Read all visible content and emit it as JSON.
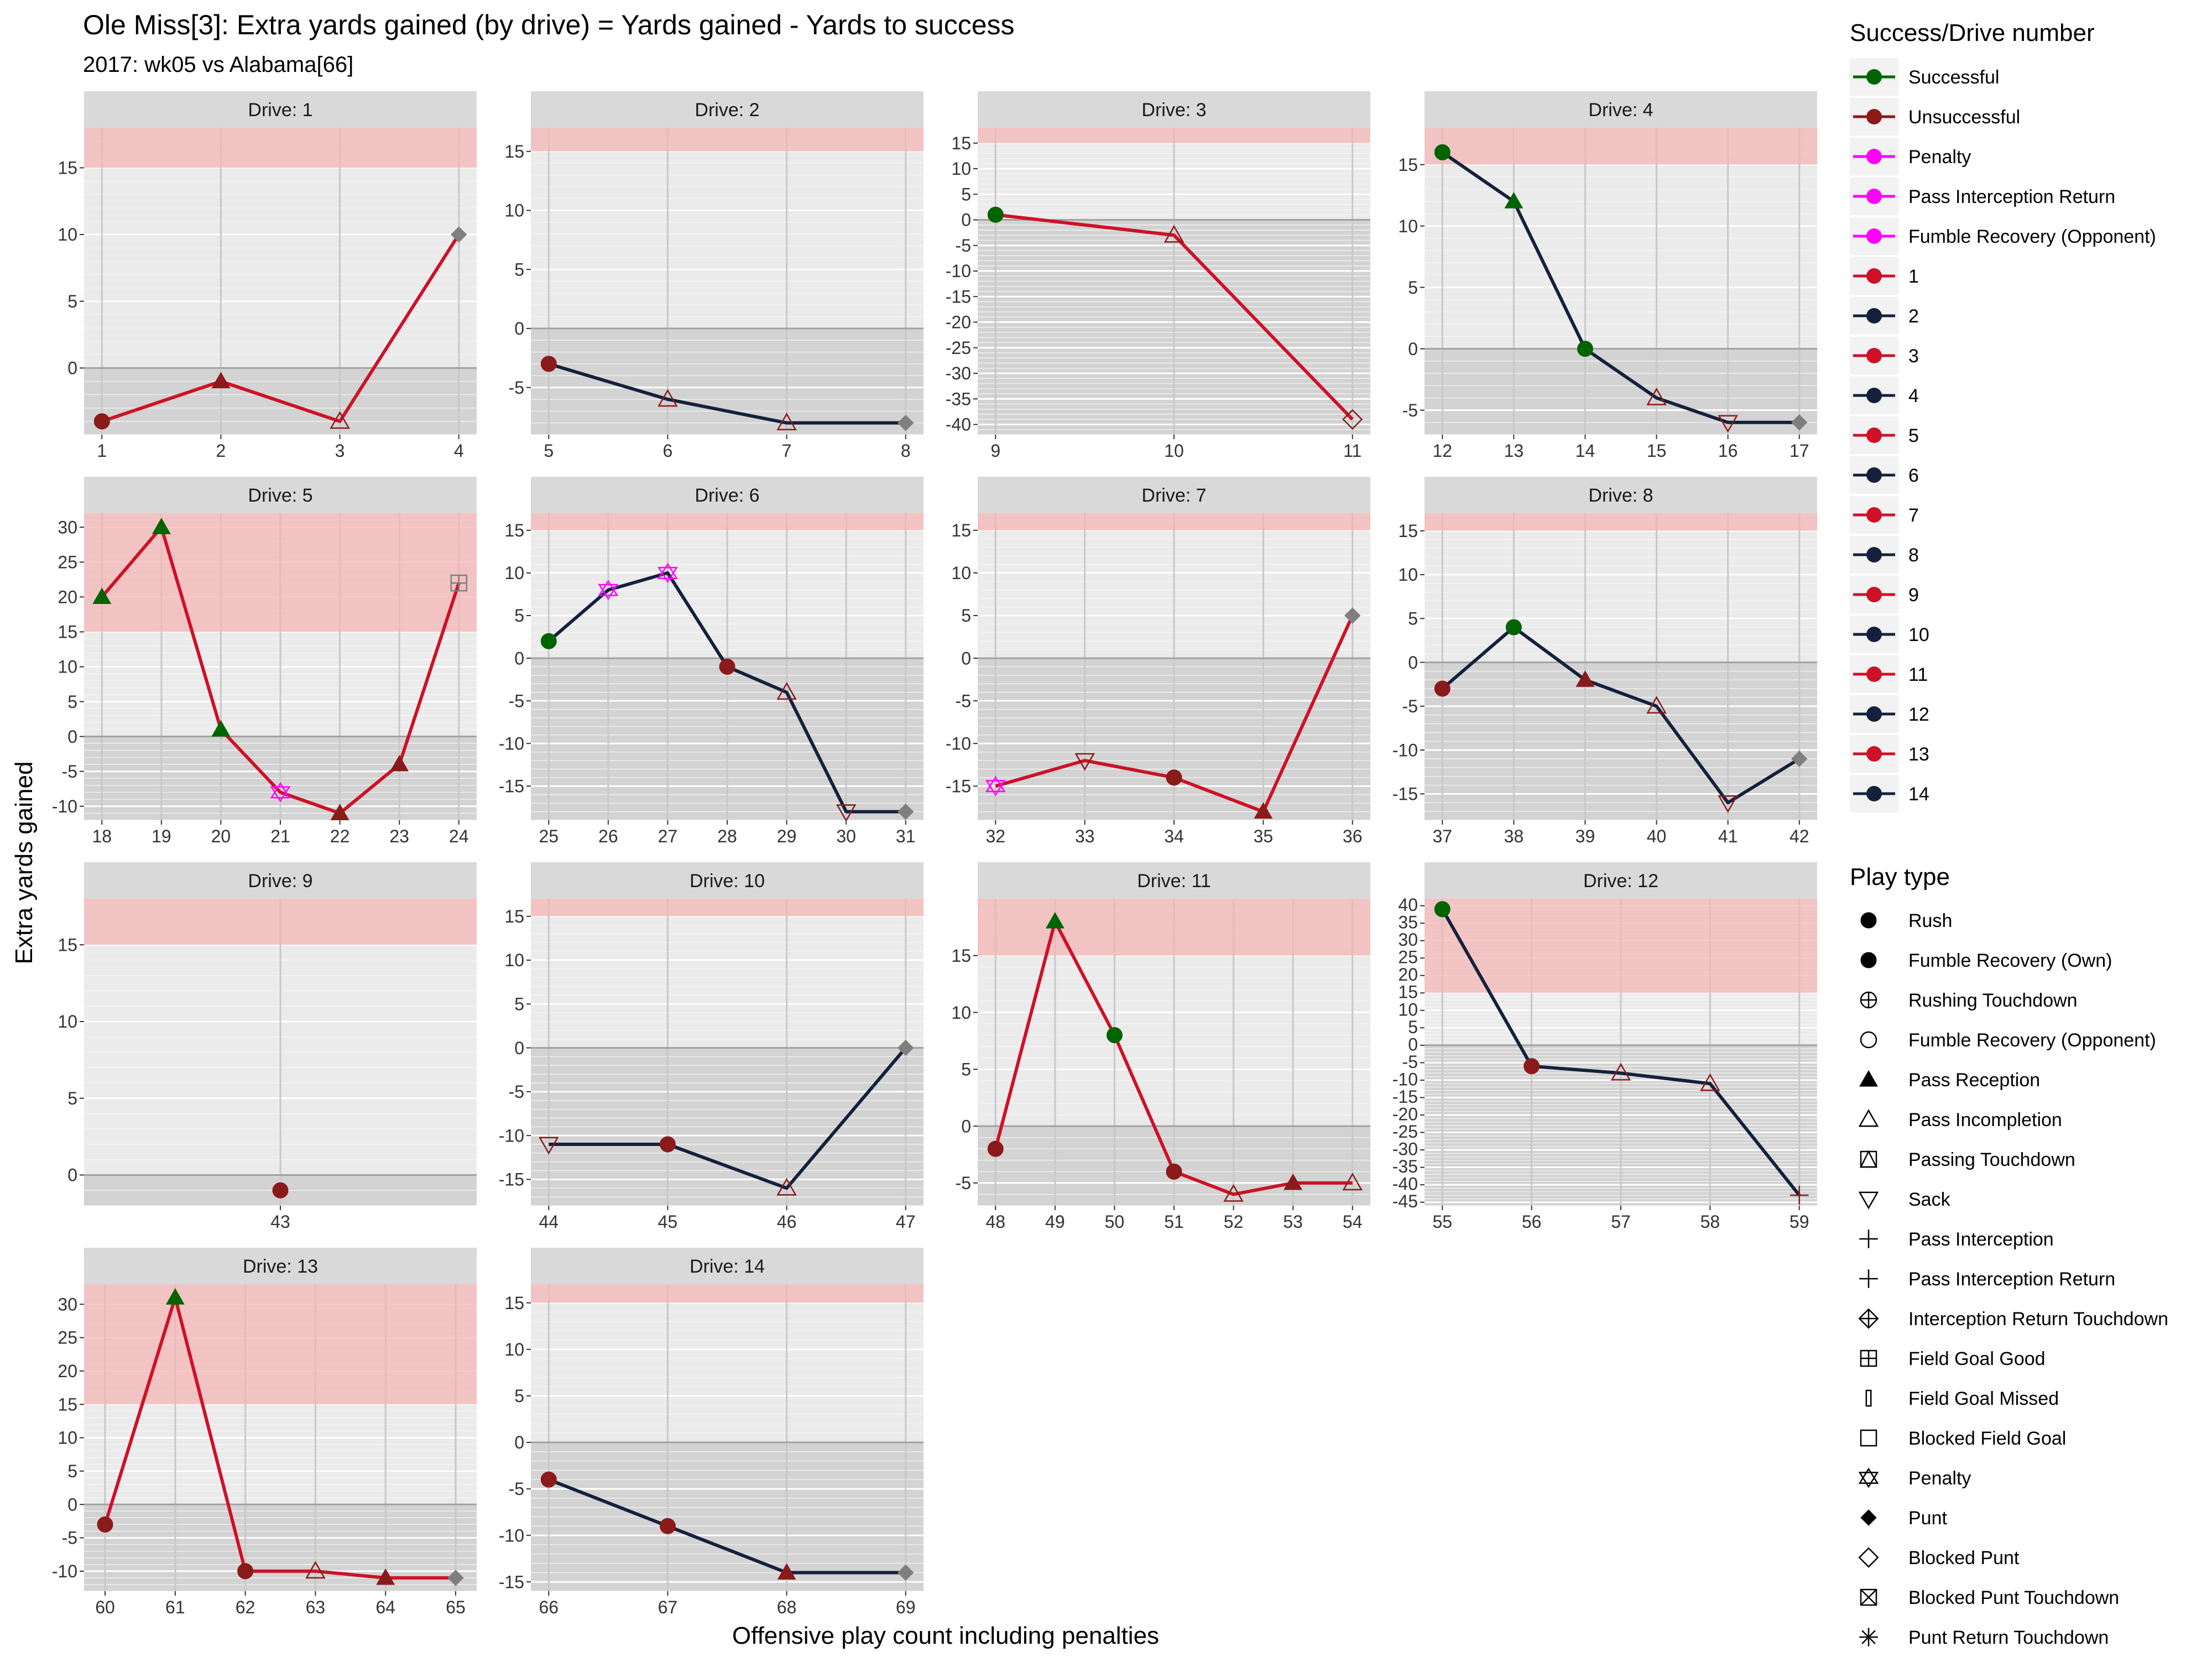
{
  "page": {
    "title": "Ole Miss[3]: Extra yards gained (by drive) = Yards gained - Yards to success",
    "subtitle": "2017: wk05 vs Alabama[66]"
  },
  "legend": {
    "success_title": "Success/Drive number",
    "success_items": [
      {
        "label": "Successful",
        "color": "#006400"
      },
      {
        "label": "Unsuccessful",
        "color": "#8B1A1A"
      },
      {
        "label": "Penalty",
        "color": "#FF00FF"
      },
      {
        "label": "Pass Interception Return",
        "color": "#FF00FF"
      },
      {
        "label": "Fumble Recovery (Opponent)",
        "color": "#FF00FF"
      },
      {
        "label": "1",
        "color": "#CE1126"
      },
      {
        "label": "2",
        "color": "#14213D"
      },
      {
        "label": "3",
        "color": "#CE1126"
      },
      {
        "label": "4",
        "color": "#14213D"
      },
      {
        "label": "5",
        "color": "#CE1126"
      },
      {
        "label": "6",
        "color": "#14213D"
      },
      {
        "label": "7",
        "color": "#CE1126"
      },
      {
        "label": "8",
        "color": "#14213D"
      },
      {
        "label": "9",
        "color": "#CE1126"
      },
      {
        "label": "10",
        "color": "#14213D"
      },
      {
        "label": "11",
        "color": "#CE1126"
      },
      {
        "label": "12",
        "color": "#14213D"
      },
      {
        "label": "13",
        "color": "#CE1126"
      },
      {
        "label": "14",
        "color": "#14213D"
      }
    ],
    "play_title": "Play type",
    "play_items": [
      {
        "label": "Rush",
        "shape": "circle"
      },
      {
        "label": "Fumble Recovery (Own)",
        "shape": "circle"
      },
      {
        "label": "Rushing Touchdown",
        "shape": "circleplus"
      },
      {
        "label": "Fumble Recovery (Opponent)",
        "shape": "circleopen"
      },
      {
        "label": "Pass Reception",
        "shape": "triangle"
      },
      {
        "label": "Pass Incompletion",
        "shape": "triangleopen"
      },
      {
        "label": "Passing Touchdown",
        "shape": "trianglesquare"
      },
      {
        "label": "Sack",
        "shape": "triangledown"
      },
      {
        "label": "Pass Interception",
        "shape": "plus"
      },
      {
        "label": "Pass Interception Return",
        "shape": "plus"
      },
      {
        "label": "Interception Return Touchdown",
        "shape": "diamondplus"
      },
      {
        "label": "Field Goal Good",
        "shape": "squareplus"
      },
      {
        "label": "Field Goal Missed",
        "shape": "bar"
      },
      {
        "label": "Blocked Field Goal",
        "shape": "squareopen"
      },
      {
        "label": "Penalty",
        "shape": "star"
      },
      {
        "label": "Punt",
        "shape": "diamond"
      },
      {
        "label": "Blocked Punt",
        "shape": "diamondopen"
      },
      {
        "label": "Blocked Punt Touchdown",
        "shape": "squarecross"
      },
      {
        "label": "Punt Return Touchdown",
        "shape": "asterisk"
      }
    ]
  },
  "chart_data": {
    "type": "line",
    "title": "Ole Miss[3]: Extra yards gained (by drive) = Yards gained - Yards to success",
    "subtitle": "2017: wk05 vs Alabama[66]",
    "xlabel": "Offensive play count including penalties",
    "ylabel": "Extra yards gained",
    "success_band_min": 15,
    "colors": {
      "Successful": "#006400",
      "Unsuccessful": "#8B1A1A",
      "Penalty": "#FF00FF",
      "Kick": "#7f7f7f",
      "Odd": "#CE1126",
      "Even": "#14213D"
    },
    "panels": [
      {
        "drive": 1,
        "strip": "Drive: 1",
        "xlim": [
          0.85,
          4.15
        ],
        "ylim": [
          -5,
          18
        ],
        "xticks": [
          1,
          2,
          3,
          4
        ],
        "yticks": [
          0,
          5,
          10,
          15
        ],
        "points": [
          {
            "x": 1,
            "y": -4,
            "shape": "circle",
            "status": "Unsuccessful"
          },
          {
            "x": 2,
            "y": -1,
            "shape": "triangle",
            "status": "Unsuccessful"
          },
          {
            "x": 3,
            "y": -4,
            "shape": "triangleopen",
            "status": "Unsuccessful"
          },
          {
            "x": 4,
            "y": 10,
            "shape": "diamond",
            "status": "Kick"
          }
        ]
      },
      {
        "drive": 2,
        "strip": "Drive: 2",
        "xlim": [
          4.85,
          8.15
        ],
        "ylim": [
          -9,
          17
        ],
        "xticks": [
          5,
          6,
          7,
          8
        ],
        "yticks": [
          -5,
          0,
          5,
          10,
          15
        ],
        "points": [
          {
            "x": 5,
            "y": -3,
            "shape": "circle",
            "status": "Unsuccessful"
          },
          {
            "x": 6,
            "y": -6,
            "shape": "triangleopen",
            "status": "Unsuccessful"
          },
          {
            "x": 7,
            "y": -8,
            "shape": "triangleopen",
            "status": "Unsuccessful"
          },
          {
            "x": 8,
            "y": -8,
            "shape": "diamond",
            "status": "Kick"
          }
        ]
      },
      {
        "drive": 3,
        "strip": "Drive: 3",
        "xlim": [
          8.9,
          11.1
        ],
        "ylim": [
          -42,
          18
        ],
        "xticks": [
          9,
          10,
          11
        ],
        "yticks": [
          -40,
          -35,
          -30,
          -25,
          -20,
          -15,
          -10,
          -5,
          0,
          5,
          10,
          15
        ],
        "points": [
          {
            "x": 9,
            "y": 1,
            "shape": "circle",
            "status": "Successful"
          },
          {
            "x": 10,
            "y": -3,
            "shape": "triangleopen",
            "status": "Unsuccessful"
          },
          {
            "x": 11,
            "y": -39,
            "shape": "diamondopen",
            "status": "Unsuccessful"
          }
        ]
      },
      {
        "drive": 4,
        "strip": "Drive: 4",
        "xlim": [
          11.75,
          17.25
        ],
        "ylim": [
          -7,
          18
        ],
        "xticks": [
          12,
          13,
          14,
          15,
          16,
          17
        ],
        "yticks": [
          -5,
          0,
          5,
          10,
          15
        ],
        "points": [
          {
            "x": 12,
            "y": 16,
            "shape": "circle",
            "status": "Successful"
          },
          {
            "x": 13,
            "y": 12,
            "shape": "triangle",
            "status": "Successful"
          },
          {
            "x": 14,
            "y": 0,
            "shape": "circle",
            "status": "Successful"
          },
          {
            "x": 15,
            "y": -4,
            "shape": "triangleopen",
            "status": "Unsuccessful"
          },
          {
            "x": 16,
            "y": -6,
            "shape": "triangledown",
            "status": "Unsuccessful"
          },
          {
            "x": 17,
            "y": -6,
            "shape": "diamond",
            "status": "Kick"
          }
        ]
      },
      {
        "drive": 5,
        "strip": "Drive: 5",
        "xlim": [
          17.7,
          24.3
        ],
        "ylim": [
          -12,
          32
        ],
        "xticks": [
          18,
          19,
          20,
          21,
          22,
          23,
          24
        ],
        "yticks": [
          -10,
          -5,
          0,
          5,
          10,
          15,
          20,
          25,
          30
        ],
        "points": [
          {
            "x": 18,
            "y": 20,
            "shape": "triangle",
            "status": "Successful"
          },
          {
            "x": 19,
            "y": 30,
            "shape": "triangle",
            "status": "Successful"
          },
          {
            "x": 20,
            "y": 1,
            "shape": "triangle",
            "status": "Successful"
          },
          {
            "x": 21,
            "y": -8,
            "shape": "star",
            "status": "Penalty"
          },
          {
            "x": 22,
            "y": -11,
            "shape": "triangle",
            "status": "Unsuccessful"
          },
          {
            "x": 23,
            "y": -4,
            "shape": "triangle",
            "status": "Unsuccessful"
          },
          {
            "x": 24,
            "y": 22,
            "shape": "squareplus",
            "status": "Kick"
          }
        ]
      },
      {
        "drive": 6,
        "strip": "Drive: 6",
        "xlim": [
          24.7,
          31.3
        ],
        "ylim": [
          -19,
          17
        ],
        "xticks": [
          25,
          26,
          27,
          28,
          29,
          30,
          31
        ],
        "yticks": [
          -15,
          -10,
          -5,
          0,
          5,
          10,
          15
        ],
        "points": [
          {
            "x": 25,
            "y": 2,
            "shape": "circle",
            "status": "Successful"
          },
          {
            "x": 26,
            "y": 8,
            "shape": "star",
            "status": "Penalty"
          },
          {
            "x": 27,
            "y": 10,
            "shape": "star",
            "status": "Penalty"
          },
          {
            "x": 28,
            "y": -1,
            "shape": "circle",
            "status": "Unsuccessful"
          },
          {
            "x": 29,
            "y": -4,
            "shape": "triangleopen",
            "status": "Unsuccessful"
          },
          {
            "x": 30,
            "y": -18,
            "shape": "triangledown",
            "status": "Unsuccessful"
          },
          {
            "x": 31,
            "y": -18,
            "shape": "diamond",
            "status": "Kick"
          }
        ]
      },
      {
        "drive": 7,
        "strip": "Drive: 7",
        "xlim": [
          31.8,
          36.2
        ],
        "ylim": [
          -19,
          17
        ],
        "xticks": [
          32,
          33,
          34,
          35,
          36
        ],
        "yticks": [
          -15,
          -10,
          -5,
          0,
          5,
          10,
          15
        ],
        "points": [
          {
            "x": 32,
            "y": -15,
            "shape": "star",
            "status": "Penalty"
          },
          {
            "x": 33,
            "y": -12,
            "shape": "triangledown",
            "status": "Unsuccessful"
          },
          {
            "x": 34,
            "y": -14,
            "shape": "circle",
            "status": "Unsuccessful"
          },
          {
            "x": 35,
            "y": -18,
            "shape": "triangle",
            "status": "Unsuccessful"
          },
          {
            "x": 36,
            "y": 5,
            "shape": "diamond",
            "status": "Kick"
          }
        ]
      },
      {
        "drive": 8,
        "strip": "Drive: 8",
        "xlim": [
          36.75,
          42.25
        ],
        "ylim": [
          -18,
          17
        ],
        "xticks": [
          37,
          38,
          39,
          40,
          41,
          42
        ],
        "yticks": [
          -15,
          -10,
          -5,
          0,
          5,
          10,
          15
        ],
        "points": [
          {
            "x": 37,
            "y": -3,
            "shape": "circle",
            "status": "Unsuccessful"
          },
          {
            "x": 38,
            "y": 4,
            "shape": "circle",
            "status": "Successful"
          },
          {
            "x": 39,
            "y": -2,
            "shape": "triangle",
            "status": "Unsuccessful"
          },
          {
            "x": 40,
            "y": -5,
            "shape": "triangleopen",
            "status": "Unsuccessful"
          },
          {
            "x": 41,
            "y": -16,
            "shape": "triangledown",
            "status": "Unsuccessful"
          },
          {
            "x": 42,
            "y": -11,
            "shape": "diamond",
            "status": "Kick"
          }
        ]
      },
      {
        "drive": 9,
        "strip": "Drive: 9",
        "xlim": [
          42.4,
          43.6
        ],
        "ylim": [
          -2,
          18
        ],
        "xticks": [
          43
        ],
        "yticks": [
          0,
          5,
          10,
          15
        ],
        "points": [
          {
            "x": 43,
            "y": -1,
            "shape": "circle",
            "status": "Unsuccessful"
          }
        ]
      },
      {
        "drive": 10,
        "strip": "Drive: 10",
        "xlim": [
          43.85,
          47.15
        ],
        "ylim": [
          -18,
          17
        ],
        "xticks": [
          44,
          45,
          46,
          47
        ],
        "yticks": [
          -15,
          -10,
          -5,
          0,
          5,
          10,
          15
        ],
        "points": [
          {
            "x": 44,
            "y": -11,
            "shape": "triangledown",
            "status": "Unsuccessful"
          },
          {
            "x": 45,
            "y": -11,
            "shape": "circle",
            "status": "Unsuccessful"
          },
          {
            "x": 46,
            "y": -16,
            "shape": "triangleopen",
            "status": "Unsuccessful"
          },
          {
            "x": 47,
            "y": 0,
            "shape": "diamond",
            "status": "Kick"
          }
        ]
      },
      {
        "drive": 11,
        "strip": "Drive: 11",
        "xlim": [
          47.7,
          54.3
        ],
        "ylim": [
          -7,
          20
        ],
        "xticks": [
          48,
          49,
          50,
          51,
          52,
          53,
          54
        ],
        "yticks": [
          -5,
          0,
          5,
          10,
          15
        ],
        "points": [
          {
            "x": 48,
            "y": -2,
            "shape": "circle",
            "status": "Unsuccessful"
          },
          {
            "x": 49,
            "y": 18,
            "shape": "triangle",
            "status": "Successful"
          },
          {
            "x": 50,
            "y": 8,
            "shape": "circle",
            "status": "Successful"
          },
          {
            "x": 51,
            "y": -4,
            "shape": "circle",
            "status": "Unsuccessful"
          },
          {
            "x": 52,
            "y": -6,
            "shape": "triangleopen",
            "status": "Unsuccessful"
          },
          {
            "x": 53,
            "y": -5,
            "shape": "triangle",
            "status": "Unsuccessful"
          },
          {
            "x": 54,
            "y": -5,
            "shape": "triangleopen",
            "status": "Unsuccessful"
          }
        ]
      },
      {
        "drive": 12,
        "strip": "Drive: 12",
        "xlim": [
          54.8,
          59.2
        ],
        "ylim": [
          -46,
          42
        ],
        "xticks": [
          55,
          56,
          57,
          58,
          59
        ],
        "yticks": [
          -45,
          -40,
          -35,
          -30,
          -25,
          -20,
          -15,
          -10,
          -5,
          0,
          5,
          10,
          15,
          20,
          25,
          30,
          35,
          40
        ],
        "points": [
          {
            "x": 55,
            "y": 39,
            "shape": "circle",
            "status": "Successful"
          },
          {
            "x": 56,
            "y": -6,
            "shape": "circle",
            "status": "Unsuccessful"
          },
          {
            "x": 57,
            "y": -8,
            "shape": "triangleopen",
            "status": "Unsuccessful"
          },
          {
            "x": 58,
            "y": -11,
            "shape": "triangleopen",
            "status": "Unsuccessful"
          },
          {
            "x": 59,
            "y": -43,
            "shape": "plus",
            "status": "Unsuccessful"
          }
        ]
      },
      {
        "drive": 13,
        "strip": "Drive: 13",
        "xlim": [
          59.7,
          65.3
        ],
        "ylim": [
          -13,
          33
        ],
        "xticks": [
          60,
          61,
          62,
          63,
          64,
          65
        ],
        "yticks": [
          -10,
          -5,
          0,
          5,
          10,
          15,
          20,
          25,
          30
        ],
        "points": [
          {
            "x": 60,
            "y": -3,
            "shape": "circle",
            "status": "Unsuccessful"
          },
          {
            "x": 61,
            "y": 31,
            "shape": "triangle",
            "status": "Successful"
          },
          {
            "x": 62,
            "y": -10,
            "shape": "circle",
            "status": "Unsuccessful"
          },
          {
            "x": 63,
            "y": -10,
            "shape": "triangleopen",
            "status": "Unsuccessful"
          },
          {
            "x": 64,
            "y": -11,
            "shape": "triangle",
            "status": "Unsuccessful"
          },
          {
            "x": 65,
            "y": -11,
            "shape": "diamond",
            "status": "Kick"
          }
        ]
      },
      {
        "drive": 14,
        "strip": "Drive: 14",
        "xlim": [
          65.85,
          69.15
        ],
        "ylim": [
          -16,
          17
        ],
        "xticks": [
          66,
          67,
          68,
          69
        ],
        "yticks": [
          -15,
          -10,
          -5,
          0,
          5,
          10,
          15
        ],
        "points": [
          {
            "x": 66,
            "y": -4,
            "shape": "circle",
            "status": "Unsuccessful"
          },
          {
            "x": 67,
            "y": -9,
            "shape": "circle",
            "status": "Unsuccessful"
          },
          {
            "x": 68,
            "y": -14,
            "shape": "triangle",
            "status": "Unsuccessful"
          },
          {
            "x": 69,
            "y": -14,
            "shape": "diamond",
            "status": "Kick"
          }
        ]
      }
    ]
  }
}
